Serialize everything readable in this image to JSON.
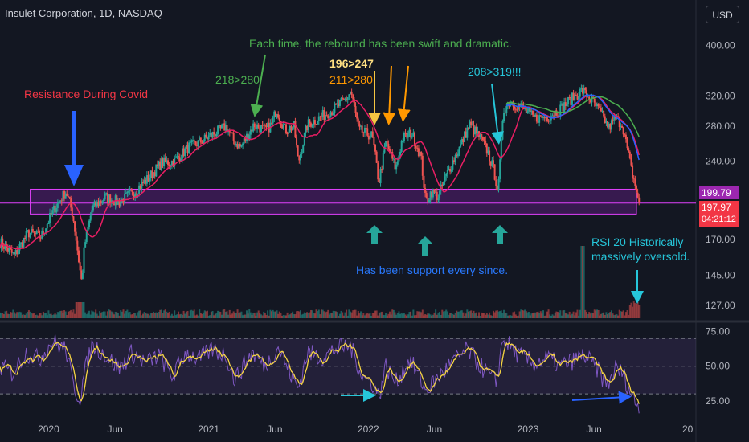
{
  "header": {
    "symbol_title": "Insulet Corporation, 1D, NASDAQ",
    "currency_button": "USD"
  },
  "badges": {
    "ma_value": "199.79",
    "last_price": "197.97",
    "countdown": "04:21:12"
  },
  "annotations": {
    "resistance": "Resistance During Covid",
    "rebound": "Each time, the rebound has been swift and dramatic.",
    "gain_1": "218>280",
    "gain_2": "196>247",
    "gain_3": "211>280",
    "gain_4": "208>319!!!",
    "support": "Has been support every since.",
    "rsi_note_1": "RSI 20 Historically",
    "rsi_note_2": "massively oversold."
  },
  "colors": {
    "background": "#131722",
    "up": "#26a69a",
    "down": "#ef5350",
    "zone_fill": "#7b1fa2",
    "zone_line": "#e040fb",
    "ma_red": "#e91e63",
    "rsi_line": "#7e57c2",
    "rsi_ma": "#f5d442"
  },
  "chart_data": [
    {
      "type": "candlestick",
      "series_note": "price panel",
      "y_scale": "log",
      "ylim": [
        120,
        430
      ],
      "price_ticks": [
        400,
        320,
        280,
        240,
        170,
        145,
        127
      ],
      "price_tick_labels": [
        "400.00",
        "320.00",
        "280.00",
        "240.00",
        "170.00",
        "145.00",
        "127.00"
      ],
      "x_tick_labels": [
        "2020",
        "Jun",
        "2021",
        "Jun",
        "2022",
        "Jun",
        "2023",
        "Jun",
        "20"
      ],
      "x_tick_dates": [
        "2020-01-01",
        "2020-06-01",
        "2021-01-01",
        "2021-06-01",
        "2022-01-01",
        "2022-06-01",
        "2023-01-01",
        "2023-06-01",
        "2024-01-01"
      ],
      "xlim": [
        "2019-09-12",
        "2024-01-20"
      ],
      "support_zone": [
        190,
        212
      ],
      "support_line": 199.79,
      "last_price": 197.97,
      "closes": [
        [
          "2019-09-12",
          168
        ],
        [
          "2019-10-15",
          158
        ],
        [
          "2019-11-15",
          175
        ],
        [
          "2019-12-15",
          172
        ],
        [
          "2020-01-15",
          195
        ],
        [
          "2020-02-10",
          210
        ],
        [
          "2020-02-25",
          190
        ],
        [
          "2020-03-12",
          150
        ],
        [
          "2020-03-17",
          140
        ],
        [
          "2020-03-23",
          165
        ],
        [
          "2020-04-10",
          195
        ],
        [
          "2020-05-10",
          205
        ],
        [
          "2020-06-10",
          200
        ],
        [
          "2020-07-15",
          210
        ],
        [
          "2020-08-15",
          222
        ],
        [
          "2020-09-15",
          238
        ],
        [
          "2020-10-15",
          240
        ],
        [
          "2020-11-15",
          255
        ],
        [
          "2020-12-15",
          262
        ],
        [
          "2021-01-10",
          270
        ],
        [
          "2021-02-10",
          280
        ],
        [
          "2021-02-28",
          262
        ],
        [
          "2021-03-15",
          255
        ],
        [
          "2021-04-15",
          282
        ],
        [
          "2021-05-10",
          275
        ],
        [
          "2021-05-25",
          282
        ],
        [
          "2021-06-05",
          302
        ],
        [
          "2021-06-25",
          275
        ],
        [
          "2021-07-15",
          280
        ],
        [
          "2021-07-25",
          238
        ],
        [
          "2021-08-15",
          282
        ],
        [
          "2021-09-15",
          292
        ],
        [
          "2021-10-15",
          302
        ],
        [
          "2021-11-10",
          315
        ],
        [
          "2021-11-22",
          326
        ],
        [
          "2021-12-10",
          275
        ],
        [
          "2022-01-10",
          268
        ],
        [
          "2022-01-25",
          218
        ],
        [
          "2022-02-10",
          260
        ],
        [
          "2022-03-05",
          232
        ],
        [
          "2022-03-20",
          265
        ],
        [
          "2022-04-10",
          272
        ],
        [
          "2022-05-01",
          245
        ],
        [
          "2022-05-12",
          200
        ],
        [
          "2022-05-25",
          210
        ],
        [
          "2022-06-10",
          205
        ],
        [
          "2022-07-01",
          228
        ],
        [
          "2022-08-01",
          258
        ],
        [
          "2022-08-20",
          282
        ],
        [
          "2022-09-15",
          265
        ],
        [
          "2022-10-01",
          250
        ],
        [
          "2022-10-15",
          230
        ],
        [
          "2022-10-25",
          210
        ],
        [
          "2022-11-01",
          258
        ],
        [
          "2022-11-05",
          300
        ],
        [
          "2022-11-20",
          312
        ],
        [
          "2022-12-15",
          305
        ],
        [
          "2023-01-15",
          290
        ],
        [
          "2023-02-15",
          292
        ],
        [
          "2023-03-15",
          302
        ],
        [
          "2023-04-15",
          318
        ],
        [
          "2023-05-05",
          328
        ],
        [
          "2023-05-20",
          318
        ],
        [
          "2023-06-10",
          302
        ],
        [
          "2023-06-25",
          288
        ],
        [
          "2023-07-05",
          278
        ],
        [
          "2023-07-20",
          290
        ],
        [
          "2023-08-05",
          282
        ],
        [
          "2023-08-15",
          255
        ],
        [
          "2023-08-25",
          232
        ],
        [
          "2023-09-05",
          212
        ],
        [
          "2023-09-12",
          198
        ]
      ]
    },
    {
      "type": "line",
      "series_note": "RSI panel",
      "ylim": [
        15,
        80
      ],
      "y_ticks": [
        75,
        50,
        25
      ],
      "y_tick_labels": [
        "75.00",
        "50.00",
        "25.00"
      ],
      "band": [
        30,
        70
      ],
      "rsi": [
        [
          "2019-09-12",
          50
        ],
        [
          "2019-10-10",
          45
        ],
        [
          "2019-11-10",
          60
        ],
        [
          "2019-12-10",
          55
        ],
        [
          "2020-01-10",
          68
        ],
        [
          "2020-02-10",
          62
        ],
        [
          "2020-02-25",
          38
        ],
        [
          "2020-03-12",
          26
        ],
        [
          "2020-03-23",
          45
        ],
        [
          "2020-04-10",
          66
        ],
        [
          "2020-05-10",
          58
        ],
        [
          "2020-06-10",
          48
        ],
        [
          "2020-07-10",
          60
        ],
        [
          "2020-08-10",
          52
        ],
        [
          "2020-09-10",
          58
        ],
        [
          "2020-10-10",
          42
        ],
        [
          "2020-11-10",
          60
        ],
        [
          "2020-12-10",
          55
        ],
        [
          "2021-01-10",
          62
        ],
        [
          "2021-02-10",
          58
        ],
        [
          "2021-03-01",
          40
        ],
        [
          "2021-04-10",
          60
        ],
        [
          "2021-05-10",
          50
        ],
        [
          "2021-06-10",
          64
        ],
        [
          "2021-07-01",
          48
        ],
        [
          "2021-07-25",
          34
        ],
        [
          "2021-08-15",
          60
        ],
        [
          "2021-09-15",
          56
        ],
        [
          "2021-10-15",
          62
        ],
        [
          "2021-11-20",
          65
        ],
        [
          "2021-12-20",
          42
        ],
        [
          "2022-01-10",
          38
        ],
        [
          "2022-01-25",
          28
        ],
        [
          "2022-02-10",
          50
        ],
        [
          "2022-03-05",
          38
        ],
        [
          "2022-04-05",
          55
        ],
        [
          "2022-05-01",
          40
        ],
        [
          "2022-05-12",
          32
        ],
        [
          "2022-06-10",
          42
        ],
        [
          "2022-07-10",
          52
        ],
        [
          "2022-08-15",
          62
        ],
        [
          "2022-09-15",
          50
        ],
        [
          "2022-10-20",
          38
        ],
        [
          "2022-11-05",
          70
        ],
        [
          "2022-12-10",
          58
        ],
        [
          "2023-01-15",
          52
        ],
        [
          "2023-02-15",
          56
        ],
        [
          "2023-03-15",
          50
        ],
        [
          "2023-04-15",
          54
        ],
        [
          "2023-05-10",
          58
        ],
        [
          "2023-06-10",
          47
        ],
        [
          "2023-07-01",
          36
        ],
        [
          "2023-07-20",
          48
        ],
        [
          "2023-08-05",
          45
        ],
        [
          "2023-08-25",
          30
        ],
        [
          "2023-09-12",
          20
        ]
      ]
    }
  ]
}
